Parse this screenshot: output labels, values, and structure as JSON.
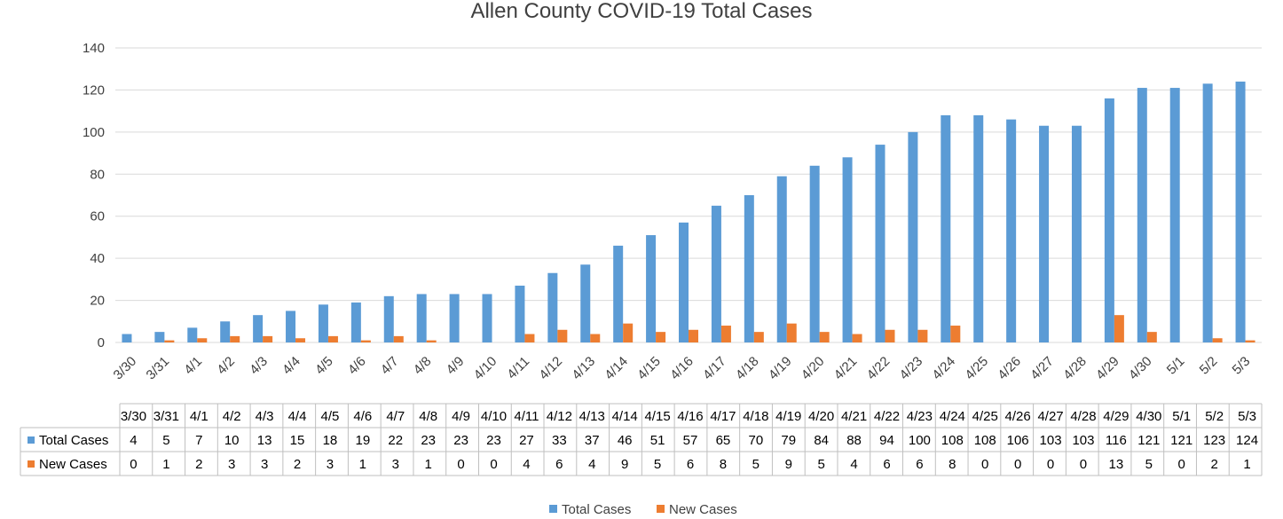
{
  "chart_data": {
    "type": "bar",
    "title": "Allen County COVID-19 Total Cases",
    "categories": [
      "3/30",
      "3/31",
      "4/1",
      "4/2",
      "4/3",
      "4/4",
      "4/5",
      "4/6",
      "4/7",
      "4/8",
      "4/9",
      "4/10",
      "4/11",
      "4/12",
      "4/13",
      "4/14",
      "4/15",
      "4/16",
      "4/17",
      "4/18",
      "4/19",
      "4/20",
      "4/21",
      "4/22",
      "4/23",
      "4/24",
      "4/25",
      "4/26",
      "4/27",
      "4/28",
      "4/29",
      "4/30",
      "5/1",
      "5/2",
      "5/3"
    ],
    "series": [
      {
        "name": "Total Cases",
        "color": "#5b9bd5",
        "values": [
          4,
          5,
          7,
          10,
          13,
          15,
          18,
          19,
          22,
          23,
          23,
          23,
          27,
          33,
          37,
          46,
          51,
          57,
          65,
          70,
          79,
          84,
          88,
          94,
          100,
          108,
          108,
          106,
          103,
          103,
          116,
          121,
          121,
          123,
          124
        ]
      },
      {
        "name": "New Cases",
        "color": "#ed7d31",
        "values": [
          0,
          1,
          2,
          3,
          3,
          2,
          3,
          1,
          3,
          1,
          0,
          0,
          4,
          6,
          4,
          9,
          5,
          6,
          8,
          5,
          9,
          5,
          4,
          6,
          6,
          8,
          0,
          0,
          0,
          0,
          13,
          5,
          0,
          2,
          1
        ]
      }
    ],
    "yticks": [
      0,
      20,
      40,
      60,
      80,
      100,
      120,
      140
    ],
    "ylim": [
      0,
      140
    ],
    "grid": true,
    "data_table": true,
    "legend": "bottom"
  }
}
